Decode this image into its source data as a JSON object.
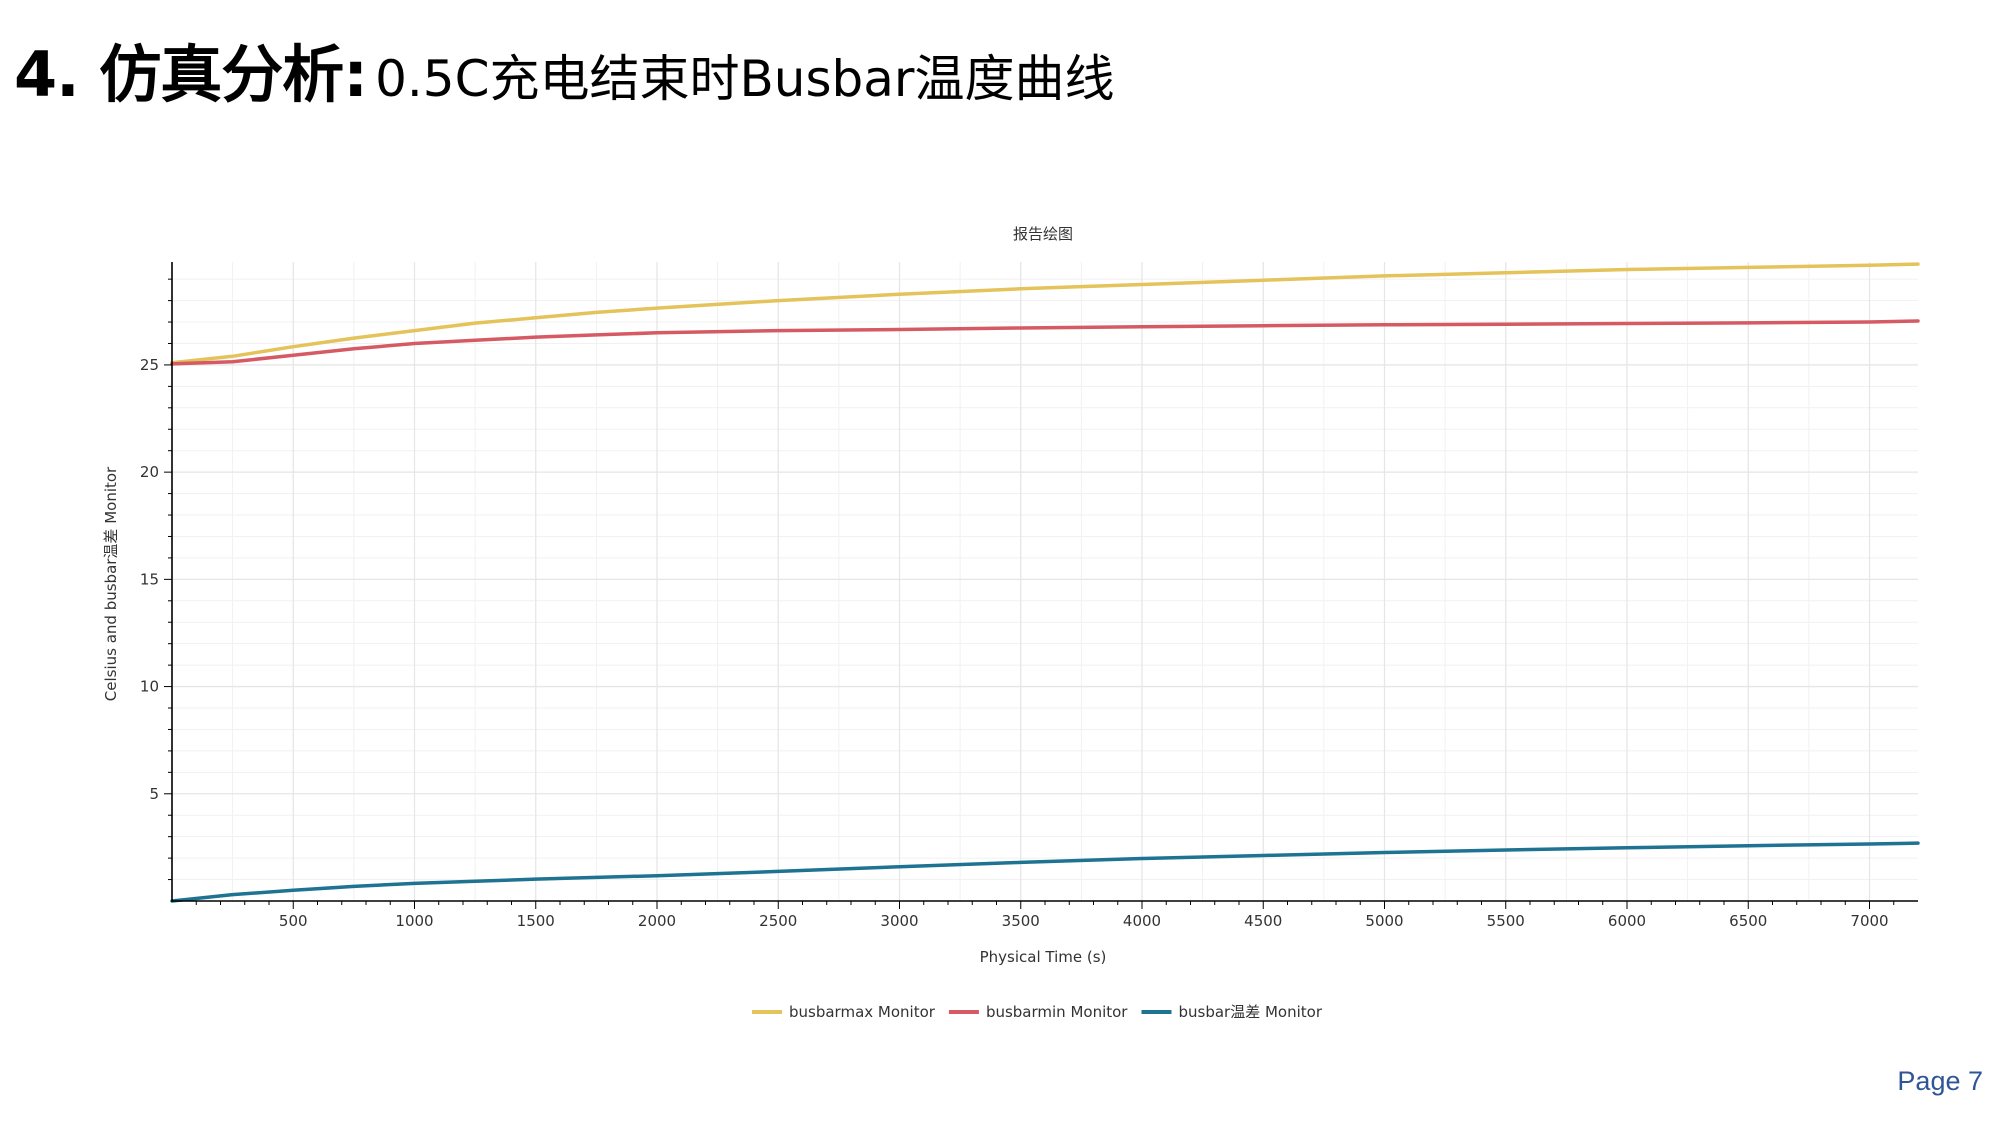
{
  "slide": {
    "title_main": "4. 仿真分析:",
    "title_sub": "0.5C充电结束时Busbar温度曲线",
    "page_label": "Page 7"
  },
  "colors": {
    "background": "#ffffff",
    "grid": "#e6e6e6",
    "axis": "#000000",
    "page_label": "#2f5597"
  },
  "chart_data": {
    "type": "line",
    "title": "报告绘图",
    "xlabel": "Physical Time (s)",
    "ylabel": "Celsius and busbar温差 Monitor",
    "xlim": [
      0,
      7200
    ],
    "ylim": [
      0,
      29.8
    ],
    "xticks": [
      500,
      1000,
      1500,
      2000,
      2500,
      3000,
      3500,
      4000,
      4500,
      5000,
      5500,
      6000,
      6500,
      7000
    ],
    "yticks": [
      5,
      10,
      15,
      20,
      25
    ],
    "grid": true,
    "legend_position": "bottom-center",
    "series": [
      {
        "name": "busbarmax Monitor",
        "color": "#e3c35a",
        "x": [
          0,
          250,
          500,
          750,
          1000,
          1250,
          1500,
          1750,
          2000,
          2500,
          3000,
          3500,
          4000,
          4500,
          5000,
          5500,
          6000,
          6500,
          7000,
          7200
        ],
        "y": [
          25.1,
          25.4,
          25.85,
          26.25,
          26.6,
          26.95,
          27.2,
          27.45,
          27.65,
          28.0,
          28.3,
          28.55,
          28.75,
          28.95,
          29.15,
          29.3,
          29.45,
          29.55,
          29.65,
          29.7
        ]
      },
      {
        "name": "busbarmin Monitor",
        "color": "#d65a63",
        "x": [
          0,
          250,
          500,
          750,
          1000,
          1250,
          1500,
          1750,
          2000,
          2500,
          3000,
          3500,
          4000,
          4500,
          5000,
          5500,
          6000,
          6500,
          7000,
          7200
        ],
        "y": [
          25.05,
          25.15,
          25.45,
          25.75,
          26.0,
          26.15,
          26.3,
          26.4,
          26.5,
          26.6,
          26.65,
          26.72,
          26.78,
          26.83,
          26.87,
          26.9,
          26.93,
          26.96,
          27.0,
          27.05
        ]
      },
      {
        "name": "busbar温差 Monitor",
        "color": "#1f7392",
        "x": [
          0,
          250,
          500,
          750,
          1000,
          1250,
          1500,
          1750,
          2000,
          2500,
          3000,
          3500,
          4000,
          4500,
          5000,
          5500,
          6000,
          6500,
          7000,
          7200
        ],
        "y": [
          0.0,
          0.3,
          0.5,
          0.68,
          0.82,
          0.92,
          1.02,
          1.1,
          1.18,
          1.38,
          1.6,
          1.8,
          1.98,
          2.12,
          2.26,
          2.38,
          2.48,
          2.58,
          2.66,
          2.7
        ]
      }
    ]
  }
}
